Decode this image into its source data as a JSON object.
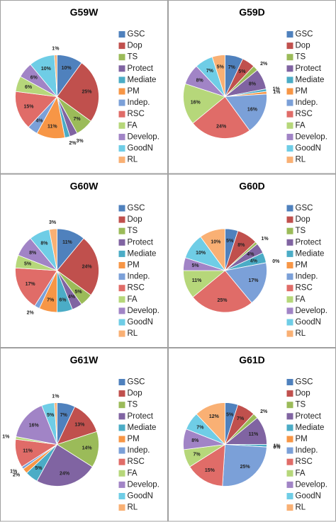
{
  "chart_data": [
    {
      "type": "pie",
      "title": "G59W",
      "categories": [
        "GSC",
        "Dop",
        "TS",
        "Protect",
        "Mediate",
        "PM",
        "Indep.",
        "RSC",
        "FA",
        "Develop.",
        "GoodN",
        "RL"
      ],
      "values": [
        10,
        25,
        7,
        3,
        2,
        11,
        4,
        15,
        6,
        6,
        10,
        1
      ],
      "value_labels": [
        "10%",
        "25%",
        "7%",
        "3%",
        "2%",
        "11%",
        "4%",
        "15%",
        "6%",
        "6%",
        "10%",
        "1%"
      ],
      "colors": [
        "#4f81bd",
        "#c0504d",
        "#9bbb59",
        "#8064a2",
        "#4bacc6",
        "#f79646",
        "#7ba0d8",
        "#e06c68",
        "#b6d77a",
        "#a184c6",
        "#6fcde6",
        "#f9b074"
      ]
    },
    {
      "type": "pie",
      "title": "G59D",
      "categories": [
        "GSC",
        "Dop",
        "TS",
        "Protect",
        "Mediate",
        "PM",
        "Indep.",
        "RSC",
        "FA",
        "Develop.",
        "GoodN",
        "RL"
      ],
      "values": [
        7,
        5,
        2,
        8,
        1,
        1,
        16,
        24,
        16,
        8,
        7,
        5
      ],
      "value_labels": [
        "7%",
        "5%",
        "2%",
        "8%",
        "1%",
        "1%",
        "16%",
        "24%",
        "16%",
        "8%",
        "7%",
        "5%"
      ],
      "colors": [
        "#4f81bd",
        "#c0504d",
        "#9bbb59",
        "#8064a2",
        "#4bacc6",
        "#f79646",
        "#7ba0d8",
        "#e06c68",
        "#b6d77a",
        "#a184c6",
        "#6fcde6",
        "#f9b074"
      ]
    },
    {
      "type": "pie",
      "title": "G60W",
      "categories": [
        "GSC",
        "Dop",
        "TS",
        "Protect",
        "Mediate",
        "PM",
        "Indep.",
        "RSC",
        "FA",
        "Develop.",
        "GoodN",
        "RL"
      ],
      "values": [
        11,
        24,
        5,
        4,
        6,
        7,
        2,
        17,
        5,
        8,
        8,
        3
      ],
      "value_labels": [
        "11%",
        "24%",
        "5%",
        "4%",
        "6%",
        "7%",
        "2%",
        "17%",
        "5%",
        "8%",
        "8%",
        "3%"
      ],
      "colors": [
        "#4f81bd",
        "#c0504d",
        "#9bbb59",
        "#8064a2",
        "#4bacc6",
        "#f79646",
        "#7ba0d8",
        "#e06c68",
        "#b6d77a",
        "#a184c6",
        "#6fcde6",
        "#f9b074"
      ]
    },
    {
      "type": "pie",
      "title": "G60D",
      "categories": [
        "GSC",
        "Dop",
        "TS",
        "Protect",
        "Mediate",
        "PM",
        "Indep.",
        "RSC",
        "FA",
        "Develop.",
        "GoodN",
        "RL"
      ],
      "values": [
        5,
        8,
        1,
        4,
        4,
        0,
        17,
        25,
        11,
        5,
        10,
        10
      ],
      "value_labels": [
        "5%",
        "8%",
        "1%",
        "4%",
        "4%",
        "0%",
        "17%",
        "25%",
        "11%",
        "5%",
        "10%",
        "10%"
      ],
      "colors": [
        "#4f81bd",
        "#c0504d",
        "#9bbb59",
        "#8064a2",
        "#4bacc6",
        "#f79646",
        "#7ba0d8",
        "#e06c68",
        "#b6d77a",
        "#a184c6",
        "#6fcde6",
        "#f9b074"
      ]
    },
    {
      "type": "pie",
      "title": "G61W",
      "categories": [
        "GSC",
        "Dop",
        "TS",
        "Protect",
        "Mediate",
        "PM",
        "Indep.",
        "RSC",
        "FA",
        "Develop.",
        "GoodN",
        "RL"
      ],
      "values": [
        7,
        13,
        14,
        24,
        5,
        2,
        1,
        11,
        1,
        16,
        5,
        1
      ],
      "value_labels": [
        "7%",
        "13%",
        "14%",
        "24%",
        "5%",
        "2%",
        "1%",
        "11%",
        "1%",
        "16%",
        "5%",
        "1%"
      ],
      "colors": [
        "#4f81bd",
        "#c0504d",
        "#9bbb59",
        "#8064a2",
        "#4bacc6",
        "#f79646",
        "#7ba0d8",
        "#e06c68",
        "#b6d77a",
        "#a184c6",
        "#6fcde6",
        "#f9b074"
      ]
    },
    {
      "type": "pie",
      "title": "G61D",
      "categories": [
        "GSC",
        "Dop",
        "TS",
        "Protect",
        "Mediate",
        "PM",
        "Indep.",
        "RSC",
        "FA",
        "Develop.",
        "GoodN",
        "RL"
      ],
      "values": [
        5,
        7,
        2,
        11,
        1,
        0,
        25,
        15,
        7,
        8,
        7,
        12
      ],
      "value_labels": [
        "5%",
        "7%",
        "2%",
        "11%",
        "1%",
        "0%",
        "25%",
        "15%",
        "7%",
        "8%",
        "7%",
        "12%"
      ],
      "colors": [
        "#4f81bd",
        "#c0504d",
        "#9bbb59",
        "#8064a2",
        "#4bacc6",
        "#f79646",
        "#7ba0d8",
        "#e06c68",
        "#b6d77a",
        "#a184c6",
        "#6fcde6",
        "#f9b074"
      ]
    }
  ]
}
